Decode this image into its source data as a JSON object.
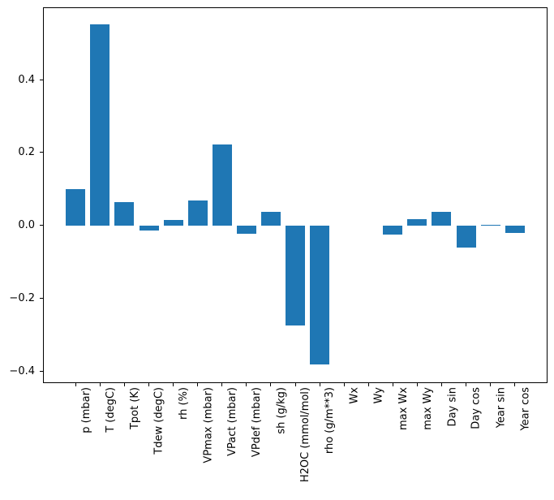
{
  "chart_data": {
    "type": "bar",
    "title": "",
    "xlabel": "",
    "ylabel": "",
    "categories": [
      "p (mbar)",
      "T (degC)",
      "Tpot (K)",
      "Tdew (degC)",
      "rh (%)",
      "VPmax (mbar)",
      "VPact (mbar)",
      "VPdef (mbar)",
      "sh (g/kg)",
      "H2OC (mmol/mol)",
      "rho (g/m**3)",
      "Wx",
      "Wy",
      "max Wx",
      "max Wy",
      "Day sin",
      "Day cos",
      "Year sin",
      "Year cos"
    ],
    "values": [
      0.1,
      0.552,
      0.065,
      -0.015,
      0.015,
      0.068,
      0.222,
      -0.022,
      0.037,
      -0.275,
      -0.38,
      0.0,
      0.0,
      -0.024,
      0.017,
      0.037,
      -0.061,
      0.003,
      -0.021
    ],
    "bar_color": "#1f77b4",
    "axis_color": "#000000",
    "text_color": "#000000",
    "background": "#ffffff",
    "bar_width": 0.8,
    "ylim": [
      -0.432,
      0.598
    ],
    "xlim": [
      -1.34,
      19.34
    ],
    "yticks": [
      0.4,
      0.2,
      0.0,
      -0.2,
      -0.4
    ],
    "ytick_labels": [
      "0.4",
      "0.2",
      "0.0",
      "−0.2",
      "−0.4"
    ],
    "grid": false,
    "legend": false
  }
}
